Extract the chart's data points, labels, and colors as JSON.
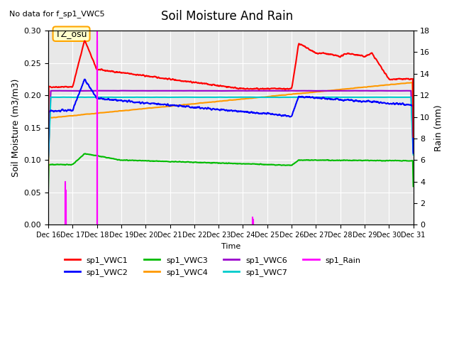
{
  "title": "Soil Moisture And Rain",
  "no_data_text": "No data for f_sp1_VWC5",
  "annotation_text": "TZ_osu",
  "xlabel": "Time",
  "ylabel_left": "Soil Moisture (m3/m3)",
  "ylabel_right": "Rain (mm)",
  "xlim_start": 16,
  "xlim_end": 31,
  "ylim_left": [
    0.0,
    0.3
  ],
  "ylim_right": [
    0,
    18
  ],
  "bg_color": "#e8e8e8",
  "series_colors": {
    "sp1_VWC1": "#ff0000",
    "sp1_VWC2": "#0000ff",
    "sp1_VWC3": "#00bb00",
    "sp1_VWC4": "#ff9900",
    "sp1_VWC6": "#9900cc",
    "sp1_VWC7": "#00cccc",
    "sp1_Rain": "#ff00ff"
  }
}
